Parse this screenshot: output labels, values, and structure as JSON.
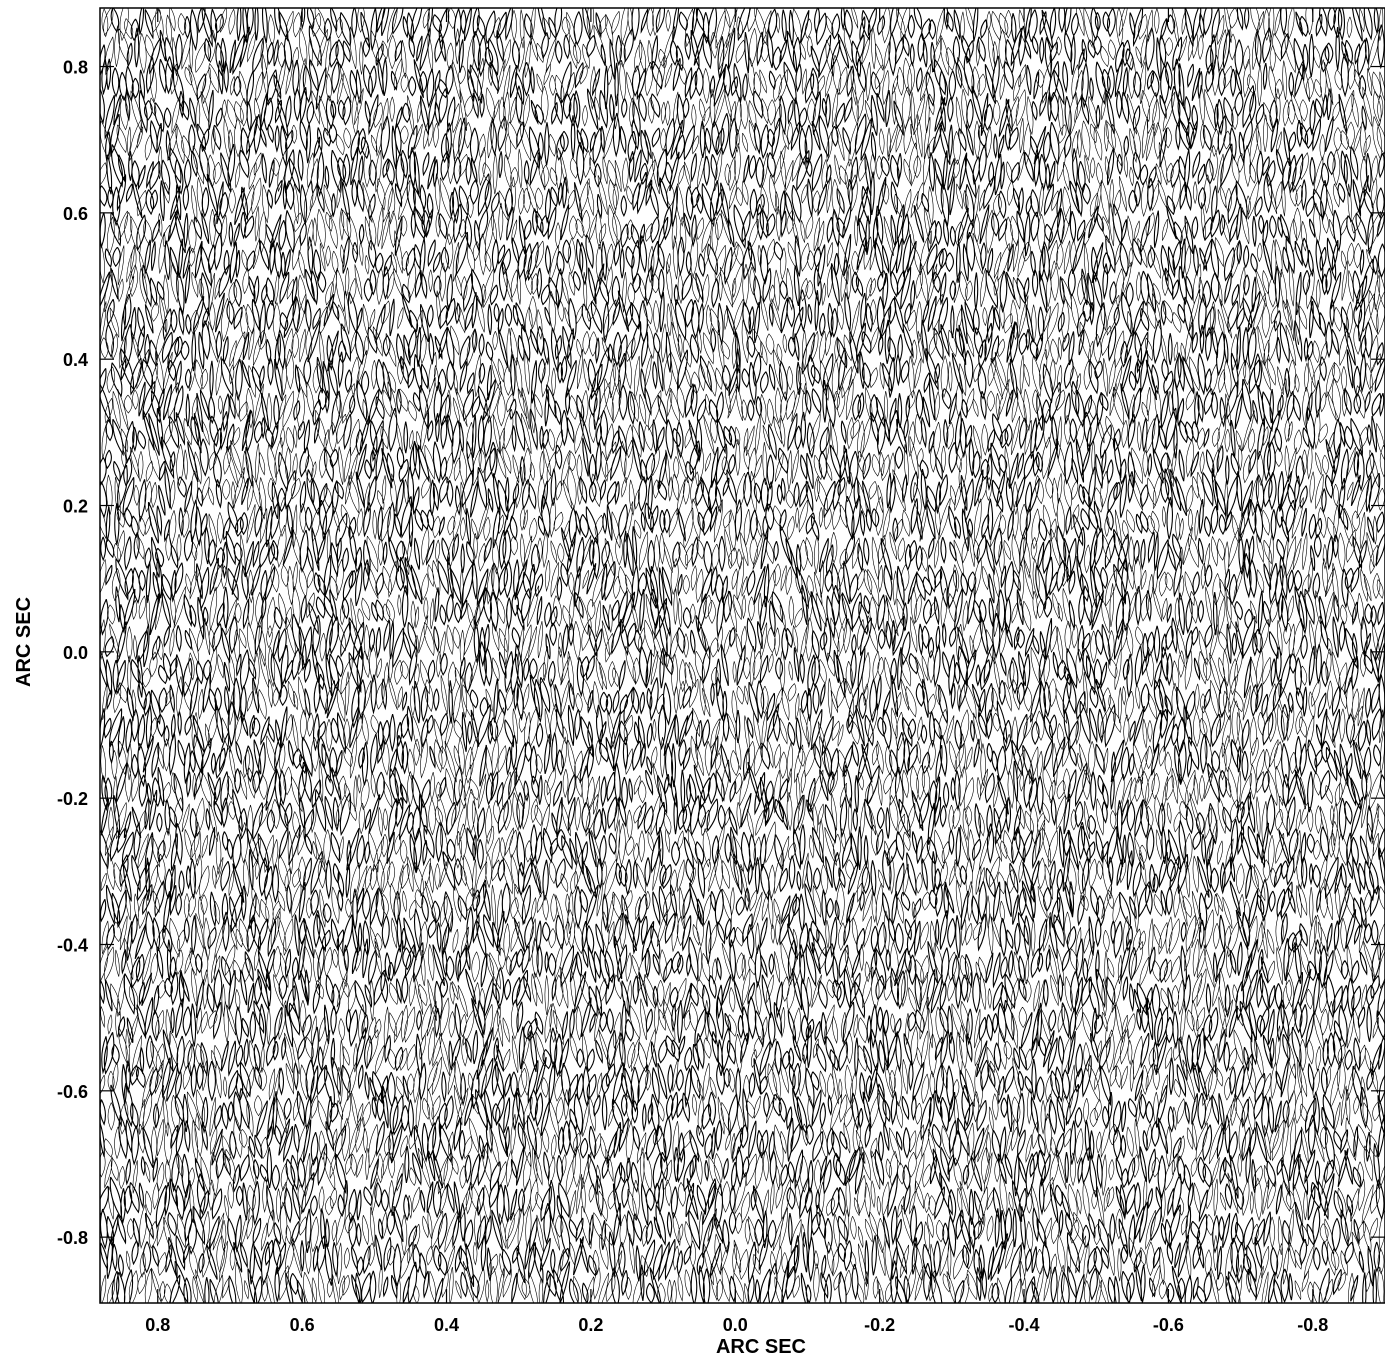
{
  "chart_data": {
    "type": "heatmap",
    "title": "",
    "xlabel": "ARC SEC",
    "ylabel": "ARC SEC",
    "xlim": [
      0.88,
      -0.9
    ],
    "ylim": [
      -0.89,
      0.88
    ],
    "x_ticks": [
      0.8,
      0.6,
      0.4,
      0.2,
      0.0,
      -0.2,
      -0.4,
      -0.6,
      -0.8
    ],
    "x_tick_labels": [
      "0.8",
      "0.6",
      "0.4",
      "0.2",
      "0.0",
      "-0.2",
      "-0.4",
      "-0.6",
      "-0.8"
    ],
    "y_ticks": [
      0.8,
      0.6,
      0.4,
      0.2,
      0.0,
      -0.2,
      -0.4,
      -0.6,
      -0.8
    ],
    "y_tick_labels": [
      "0.8",
      "0.6",
      "0.4",
      "0.2",
      "0.0",
      "-0.2",
      "-0.4",
      "-0.6",
      "-0.8"
    ],
    "grid": false,
    "legend": "none",
    "rendering": "dense black contour lines on white background",
    "line_color": "#000000",
    "background_color": "#ffffff"
  }
}
